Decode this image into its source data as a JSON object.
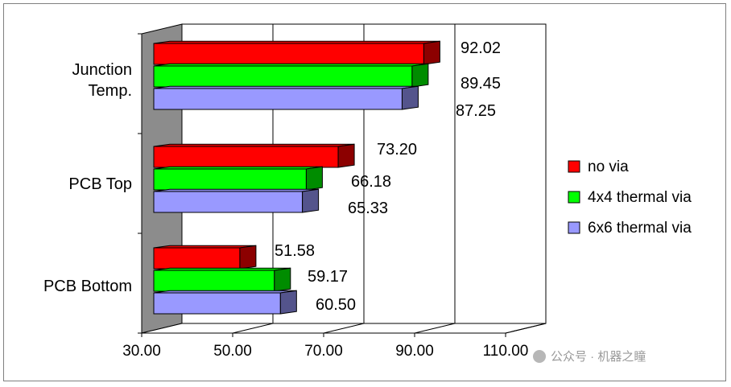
{
  "chart_data": {
    "type": "bar",
    "orientation": "horizontal",
    "categories": [
      "Junction Temp.",
      "PCB Top",
      "PCB Bottom"
    ],
    "series": [
      {
        "name": "no via",
        "color": "#ff0000",
        "values": [
          92.02,
          73.2,
          51.58
        ]
      },
      {
        "name": "4x4 thermal via",
        "color": "#00ff00",
        "values": [
          89.45,
          66.18,
          59.17
        ]
      },
      {
        "name": "6x6 thermal via",
        "color": "#9999ff",
        "values": [
          87.25,
          65.33,
          60.5
        ]
      }
    ],
    "xlim": [
      30,
      110
    ],
    "xticks": [
      "30.00",
      "50.00",
      "70.00",
      "90.00",
      "110.00"
    ],
    "value_labels": [
      [
        "92.02",
        "73.20",
        "51.58"
      ],
      [
        "89.45",
        "66.18",
        "59.17"
      ],
      [
        "87.25",
        "65.33",
        "60.50"
      ]
    ],
    "grid": true,
    "legend_position": "right",
    "three_d": true
  },
  "watermark": "公众号 · 机器之瞳"
}
